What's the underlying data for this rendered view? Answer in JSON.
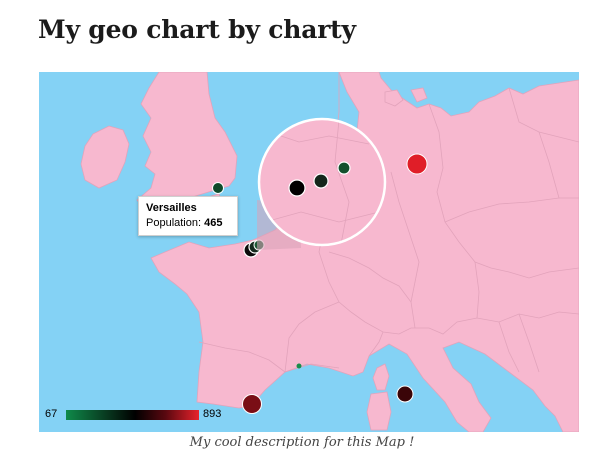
{
  "page": {
    "title": "My geo chart by charty",
    "description": "My cool description for this Map !"
  },
  "map": {
    "ocean_color": "#84d2f5",
    "land_color": "#f7b8cf",
    "border_color": "#e2a3bb",
    "region": "Western Europe",
    "magnifier": "zoom lens"
  },
  "tooltip": {
    "title": "Versailles",
    "label": "Population: ",
    "value": "465"
  },
  "legend": {
    "min": "67",
    "max": "893",
    "colors": [
      "#0f8a4a",
      "#083a20",
      "#000000",
      "#5a0810",
      "#e8232c"
    ]
  },
  "chart_data": {
    "type": "geo-markers",
    "color_axis": {
      "min": 67,
      "max": 893
    },
    "markers": [
      {
        "label": "Versailles",
        "value": 465
      }
    ]
  }
}
